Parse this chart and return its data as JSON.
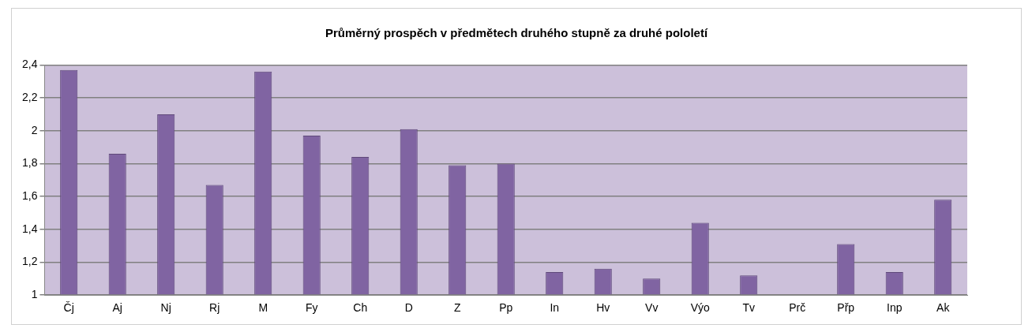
{
  "chart_data": {
    "type": "bar",
    "title": "Průměrný prospěch v předmětech druhého stupně za druhé pololetí",
    "categories": [
      "Čj",
      "Aj",
      "Nj",
      "Rj",
      "M",
      "Fy",
      "Ch",
      "D",
      "Z",
      "Pp",
      "In",
      "Hv",
      "Vv",
      "Výo",
      "Tv",
      "Prč",
      "Přp",
      "Inp",
      "Ak"
    ],
    "values": [
      2.37,
      1.86,
      2.1,
      1.67,
      2.36,
      1.97,
      1.84,
      2.01,
      1.79,
      1.8,
      1.14,
      1.16,
      1.1,
      1.44,
      1.12,
      1.0,
      1.31,
      1.14,
      1.58
    ],
    "color": "#8064a2",
    "ylim": [
      1,
      2.4
    ],
    "yticks": [
      {
        "value": 1,
        "label": "1"
      },
      {
        "value": 1.2,
        "label": "1,2"
      },
      {
        "value": 1.4,
        "label": "1,4"
      },
      {
        "value": 1.6,
        "label": "1,6"
      },
      {
        "value": 1.8,
        "label": "1,8"
      },
      {
        "value": 2,
        "label": "2"
      },
      {
        "value": 2.2,
        "label": "2,2"
      },
      {
        "value": 2.4,
        "label": "2,4"
      }
    ],
    "grid": "y"
  }
}
